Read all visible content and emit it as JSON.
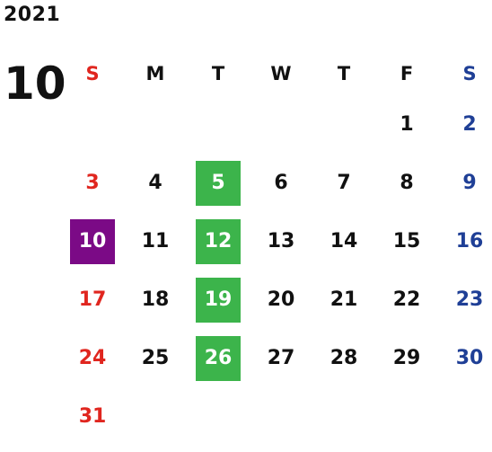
{
  "year": "2021",
  "month": "10",
  "weekdays": [
    "S",
    "M",
    "T",
    "W",
    "T",
    "F",
    "S"
  ],
  "colors": {
    "sunday": "#e0261f",
    "saturday": "#1f3f96",
    "highlight_green": "#3cb44b",
    "highlight_purple": "#7b0a86"
  },
  "weeks": [
    [
      "",
      "",
      "",
      "",
      "",
      "1",
      "2"
    ],
    [
      "3",
      "4",
      "5",
      "6",
      "7",
      "8",
      "9"
    ],
    [
      "10",
      "11",
      "12",
      "13",
      "14",
      "15",
      "16"
    ],
    [
      "17",
      "18",
      "19",
      "20",
      "21",
      "22",
      "23"
    ],
    [
      "24",
      "25",
      "26",
      "27",
      "28",
      "29",
      "30"
    ],
    [
      "31",
      "",
      "",
      "",
      "",
      "",
      ""
    ]
  ],
  "highlights": {
    "purple": [
      "10"
    ],
    "green": [
      "5",
      "12",
      "19",
      "26"
    ]
  }
}
